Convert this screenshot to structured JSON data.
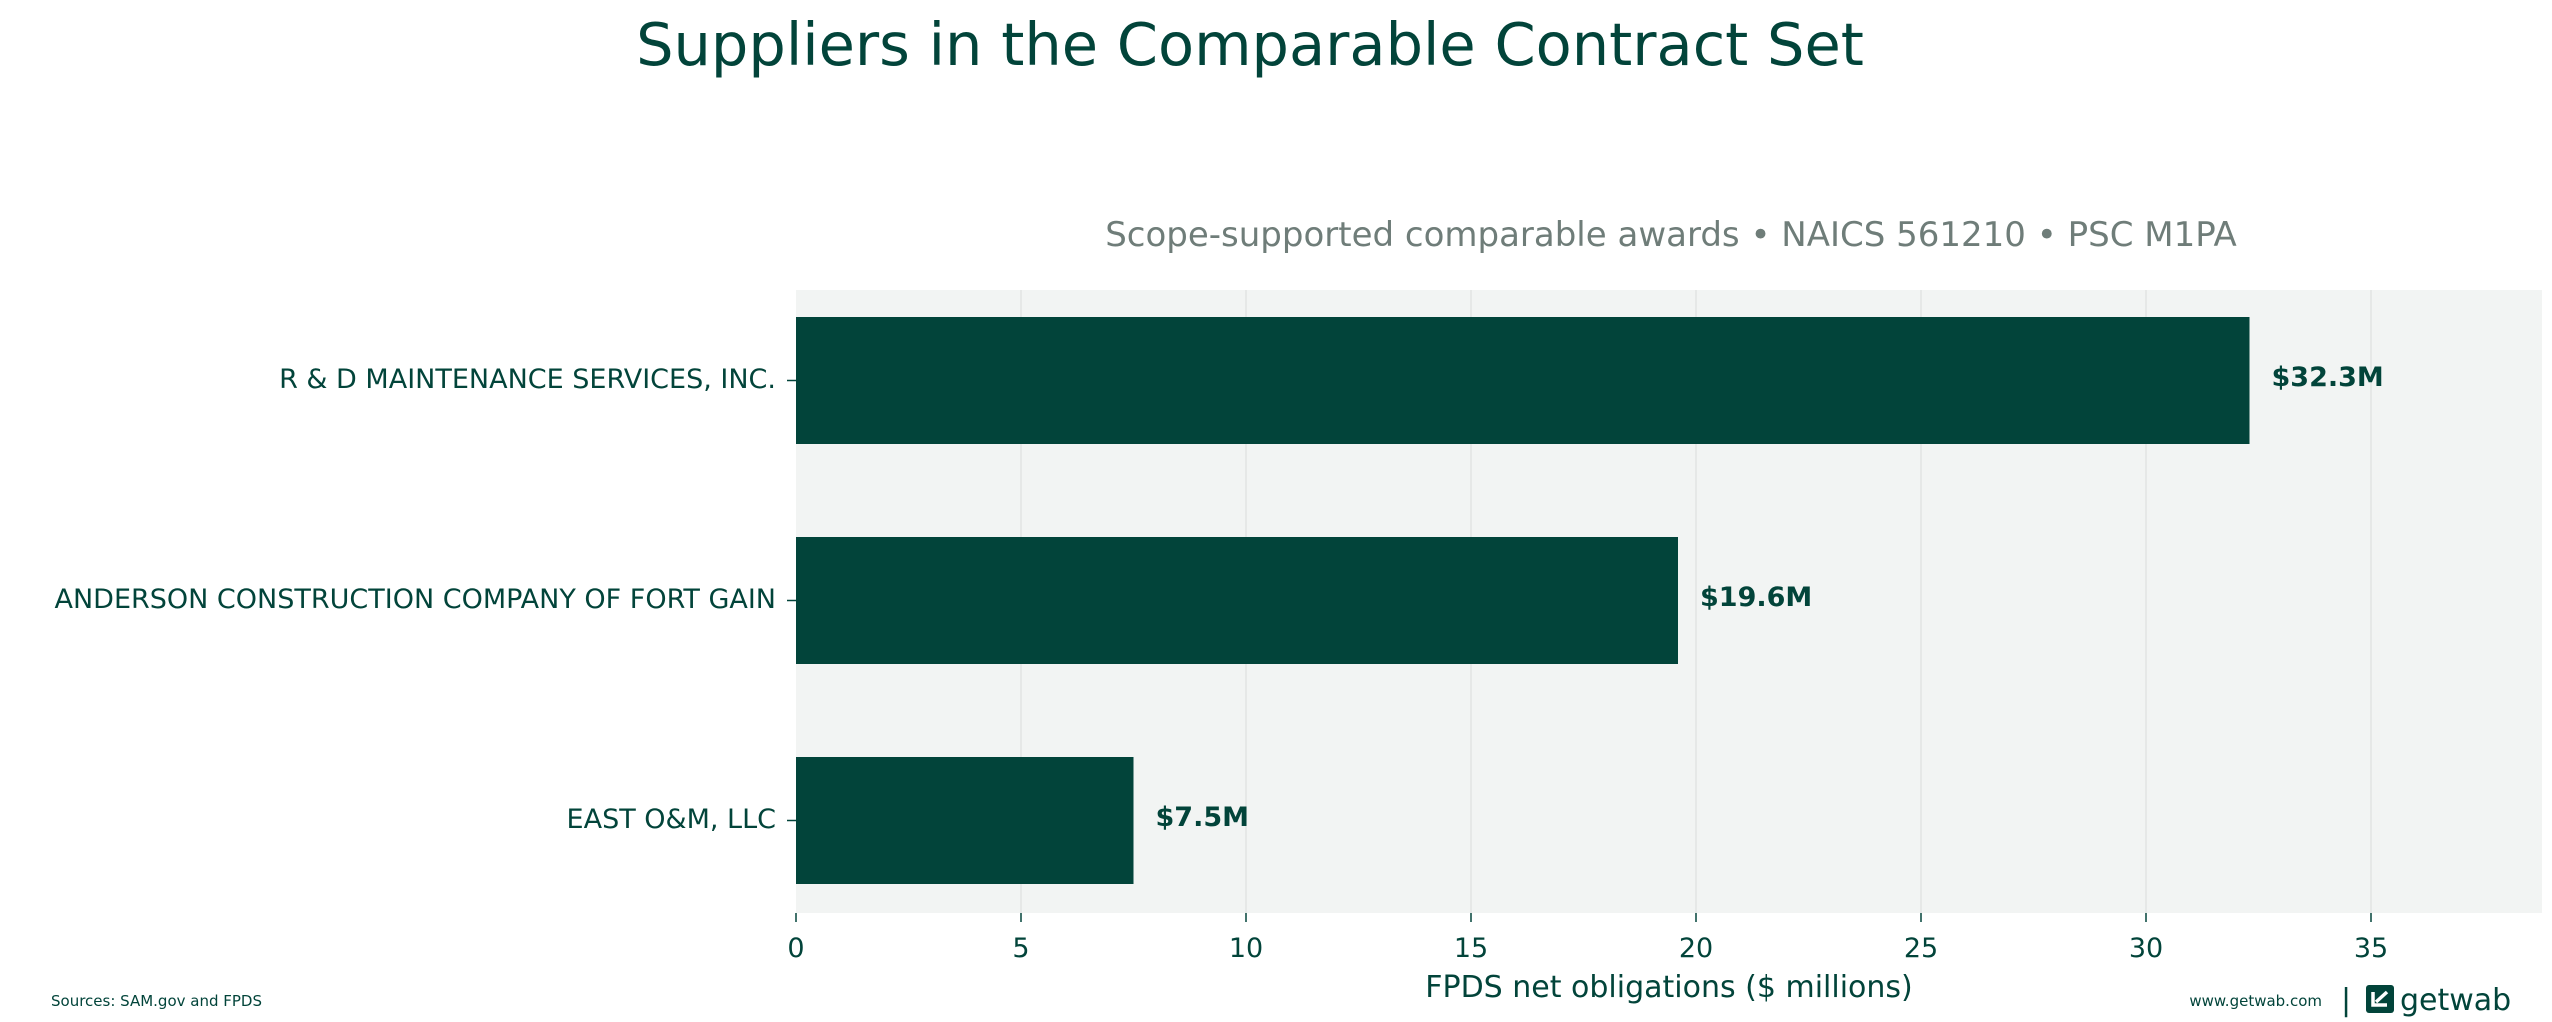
{
  "chart_data": {
    "type": "bar",
    "orientation": "horizontal",
    "title": "Suppliers in the Comparable Contract Set",
    "subtitle": "Scope-supported comparable awards • NAICS 561210 • PSC M1PA",
    "xlabel": "FPDS net obligations ($ millions)",
    "ylabel": "",
    "categories": [
      "R & D MAINTENANCE SERVICES, INC.",
      "ANDERSON CONSTRUCTION COMPANY OF FORT GAIN",
      "EAST O&M, LLC"
    ],
    "values": [
      32.3,
      19.6,
      7.5
    ],
    "value_labels": [
      "$32.3M",
      "$19.6M",
      "$7.5M"
    ],
    "xlim": [
      0,
      38.8
    ],
    "xticks": [
      0,
      5,
      10,
      15,
      20,
      25,
      30,
      35
    ],
    "grid": "vertical",
    "legend": "none",
    "colors": {
      "bar": "#02443a",
      "plot_background": "#f2f4f3",
      "gridline": "#e1e4e3",
      "text": "#02443a",
      "subtitle": "#6f7d79"
    }
  },
  "footer": {
    "sources": "Sources: SAM.gov and FPDS",
    "website": "www.getwab.com",
    "separator": "|",
    "logo_text": "getwab",
    "logo_icon": "getwab-logo-icon"
  }
}
